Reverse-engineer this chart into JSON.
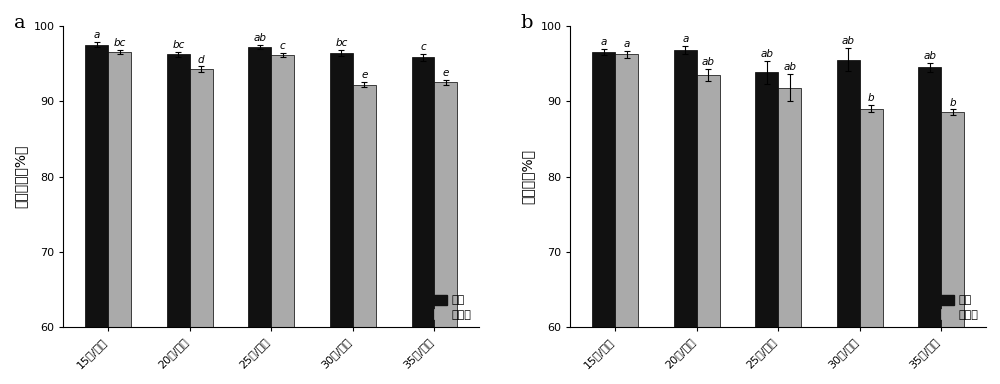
{
  "categories": [
    "15度/分钟",
    "20度/分钟",
    "25度/分钟",
    "30度/分钟",
    "35度/分钟"
  ],
  "panel_a": {
    "title": "a",
    "ylabel": "相对活率（%）",
    "black_values": [
      97.5,
      96.2,
      97.2,
      96.4,
      95.8
    ],
    "gray_values": [
      96.5,
      94.2,
      96.1,
      92.2,
      92.5
    ],
    "black_errors": [
      0.3,
      0.3,
      0.3,
      0.4,
      0.5
    ],
    "gray_errors": [
      0.3,
      0.4,
      0.3,
      0.3,
      0.3
    ],
    "black_labels": [
      "a",
      "bc",
      "ab",
      "bc",
      "c"
    ],
    "gray_labels": [
      "bc",
      "d",
      "c",
      "e",
      "e"
    ],
    "ylim": [
      60,
      100
    ],
    "yticks": [
      60,
      70,
      80,
      90,
      100
    ]
  },
  "panel_b": {
    "title": "b",
    "ylabel": "回收率（%）",
    "black_values": [
      96.5,
      96.8,
      93.8,
      95.5,
      94.5
    ],
    "gray_values": [
      96.2,
      93.5,
      91.8,
      89.0,
      88.5
    ],
    "black_errors": [
      0.4,
      0.5,
      1.5,
      1.5,
      0.6
    ],
    "gray_errors": [
      0.5,
      0.8,
      1.8,
      0.5,
      0.4
    ],
    "black_labels": [
      "a",
      "a",
      "ab",
      "ab",
      "ab"
    ],
    "gray_labels": [
      "a",
      "ab",
      "ab",
      "b",
      "b"
    ],
    "ylim": [
      60,
      100
    ],
    "yticks": [
      60,
      70,
      80,
      90,
      100
    ]
  },
  "bar_width": 0.28,
  "black_color": "#111111",
  "gray_color": "#aaaaaa",
  "legend_labels": [
    "置核",
    "不置核"
  ],
  "label_fontsize": 8,
  "tick_fontsize": 8,
  "ylabel_fontsize": 10,
  "panel_label_fontsize": 14,
  "sig_fontsize": 7.5
}
